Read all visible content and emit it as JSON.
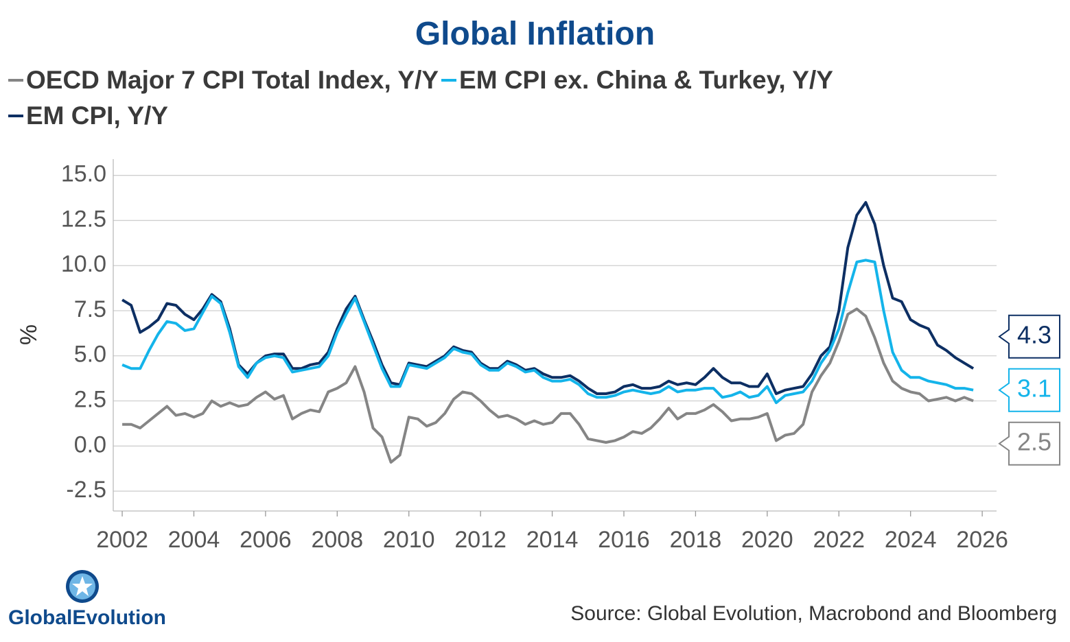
{
  "chart_data": {
    "type": "line",
    "title": "Global Inflation",
    "y_label": "%",
    "source": "Source: Global Evolution, Macrobond and Bloomberg",
    "logo_text": "GlobalEvolution",
    "x": [
      2002,
      2002.25,
      2002.5,
      2002.75,
      2003,
      2003.25,
      2003.5,
      2003.75,
      2004,
      2004.25,
      2004.5,
      2004.75,
      2005,
      2005.25,
      2005.5,
      2005.75,
      2006,
      2006.25,
      2006.5,
      2006.75,
      2007,
      2007.25,
      2007.5,
      2007.75,
      2008,
      2008.25,
      2008.5,
      2008.75,
      2009,
      2009.25,
      2009.5,
      2009.75,
      2010,
      2010.25,
      2010.5,
      2010.75,
      2011,
      2011.25,
      2011.5,
      2011.75,
      2012,
      2012.25,
      2012.5,
      2012.75,
      2013,
      2013.25,
      2013.5,
      2013.75,
      2014,
      2014.25,
      2014.5,
      2014.75,
      2015,
      2015.25,
      2015.5,
      2015.75,
      2016,
      2016.25,
      2016.5,
      2016.75,
      2017,
      2017.25,
      2017.5,
      2017.75,
      2018,
      2018.25,
      2018.5,
      2018.75,
      2019,
      2019.25,
      2019.5,
      2019.75,
      2020,
      2020.25,
      2020.5,
      2020.75,
      2021,
      2021.25,
      2021.5,
      2021.75,
      2022,
      2022.25,
      2022.5,
      2022.75,
      2023,
      2023.25,
      2023.5,
      2023.75,
      2024,
      2024.25,
      2024.5,
      2024.75,
      2025,
      2025.25,
      2025.5,
      2025.75
    ],
    "series": [
      {
        "name": "OECD Major 7 CPI Total Index, Y/Y",
        "color": "#858585",
        "values": [
          1.2,
          1.2,
          1.0,
          1.4,
          1.8,
          2.2,
          1.7,
          1.8,
          1.6,
          1.8,
          2.5,
          2.2,
          2.4,
          2.2,
          2.3,
          2.7,
          3.0,
          2.6,
          2.8,
          1.5,
          1.8,
          2.0,
          1.9,
          3.0,
          3.2,
          3.5,
          4.4,
          3.0,
          1.0,
          0.5,
          -0.9,
          -0.5,
          1.6,
          1.5,
          1.1,
          1.3,
          1.8,
          2.6,
          3.0,
          2.9,
          2.5,
          2.0,
          1.6,
          1.7,
          1.5,
          1.2,
          1.4,
          1.2,
          1.3,
          1.8,
          1.8,
          1.2,
          0.4,
          0.3,
          0.2,
          0.3,
          0.5,
          0.8,
          0.7,
          1.0,
          1.5,
          2.1,
          1.5,
          1.8,
          1.8,
          2.0,
          2.3,
          1.9,
          1.4,
          1.5,
          1.5,
          1.6,
          1.8,
          0.3,
          0.6,
          0.7,
          1.2,
          3.0,
          3.9,
          4.6,
          5.8,
          7.3,
          7.6,
          7.2,
          6.0,
          4.6,
          3.6,
          3.2,
          3.0,
          2.9,
          2.5,
          2.6,
          2.7,
          2.5,
          2.7,
          2.5
        ]
      },
      {
        "name": "EM CPI ex. China & Turkey, Y/Y",
        "color": "#14b4ea",
        "values": [
          4.5,
          4.3,
          4.3,
          5.3,
          6.2,
          6.9,
          6.8,
          6.4,
          6.5,
          7.4,
          8.3,
          7.9,
          6.3,
          4.4,
          3.8,
          4.6,
          4.9,
          5.0,
          4.9,
          4.1,
          4.2,
          4.3,
          4.4,
          5.0,
          6.3,
          7.3,
          8.2,
          6.9,
          5.6,
          4.3,
          3.3,
          3.3,
          4.5,
          4.4,
          4.3,
          4.6,
          4.9,
          5.4,
          5.2,
          5.1,
          4.5,
          4.2,
          4.2,
          4.6,
          4.4,
          4.1,
          4.2,
          3.8,
          3.6,
          3.6,
          3.7,
          3.4,
          2.9,
          2.7,
          2.7,
          2.8,
          3.0,
          3.1,
          3.0,
          2.9,
          3.0,
          3.3,
          3.0,
          3.1,
          3.1,
          3.2,
          3.2,
          2.7,
          2.8,
          3.0,
          2.7,
          2.8,
          3.3,
          2.4,
          2.8,
          2.9,
          3.0,
          3.6,
          4.6,
          5.3,
          6.5,
          8.5,
          10.2,
          10.3,
          10.2,
          7.5,
          5.2,
          4.2,
          3.8,
          3.8,
          3.6,
          3.5,
          3.4,
          3.2,
          3.2,
          3.1
        ]
      },
      {
        "name": "EM CPI, Y/Y",
        "color": "#0d2f63",
        "values": [
          8.1,
          7.8,
          6.3,
          6.6,
          7.0,
          7.9,
          7.8,
          7.3,
          7.0,
          7.6,
          8.4,
          8.0,
          6.5,
          4.5,
          4.0,
          4.6,
          5.0,
          5.1,
          5.1,
          4.3,
          4.3,
          4.5,
          4.6,
          5.2,
          6.5,
          7.6,
          8.3,
          7.0,
          5.8,
          4.5,
          3.5,
          3.4,
          4.6,
          4.5,
          4.4,
          4.7,
          5.0,
          5.5,
          5.3,
          5.2,
          4.6,
          4.3,
          4.3,
          4.7,
          4.5,
          4.2,
          4.3,
          4.0,
          3.8,
          3.8,
          3.9,
          3.6,
          3.2,
          2.9,
          2.9,
          3.0,
          3.3,
          3.4,
          3.2,
          3.2,
          3.3,
          3.6,
          3.4,
          3.5,
          3.4,
          3.8,
          4.3,
          3.8,
          3.5,
          3.5,
          3.3,
          3.3,
          4.0,
          2.9,
          3.1,
          3.2,
          3.3,
          4.0,
          5.0,
          5.5,
          7.5,
          11.0,
          12.8,
          13.5,
          12.3,
          10.0,
          8.2,
          8.0,
          7.0,
          6.7,
          6.5,
          5.6,
          5.3,
          4.9,
          4.6,
          4.3
        ]
      }
    ],
    "xlim": [
      2001.75,
      2026.4
    ],
    "xticks": [
      2002,
      2004,
      2006,
      2008,
      2010,
      2012,
      2014,
      2016,
      2018,
      2020,
      2022,
      2024,
      2026
    ],
    "ylim": [
      -3.6,
      15.9
    ],
    "yticks": [
      {
        "value": 15,
        "label": "15.0"
      },
      12.5,
      {
        "value": 10,
        "label": "10.0"
      },
      7.5,
      {
        "value": 5,
        "label": "5.0"
      },
      2.5,
      {
        "value": 0,
        "label": "0.0"
      },
      -2.5
    ],
    "grid": true
  }
}
